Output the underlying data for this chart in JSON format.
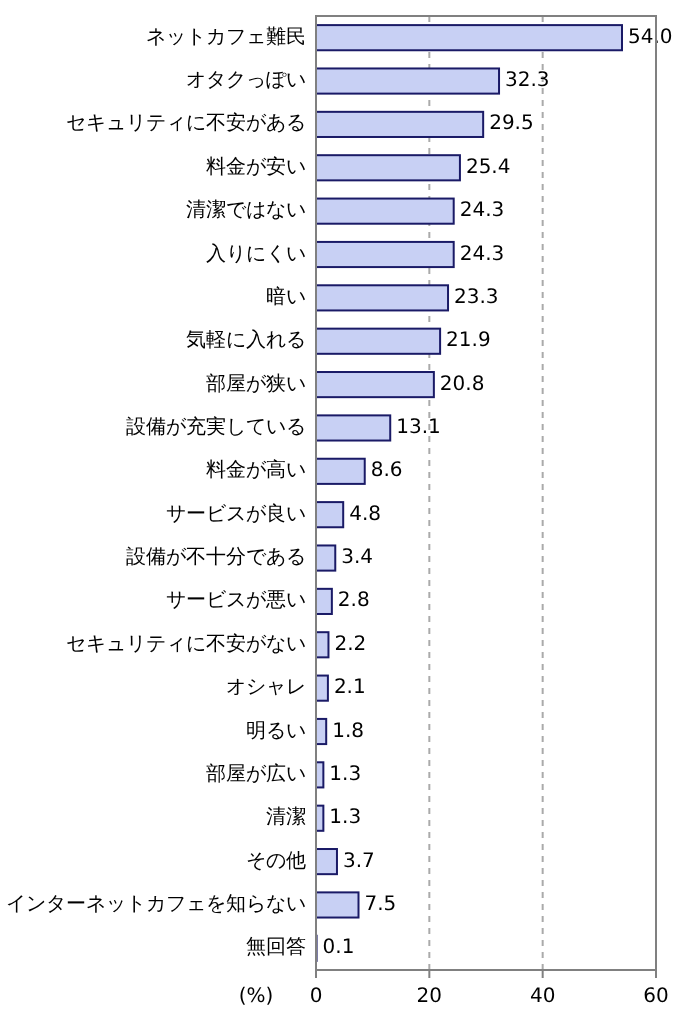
{
  "chart_data": {
    "type": "bar",
    "orientation": "horizontal",
    "xlabel": "(%)",
    "categories": [
      "ネットカフェ難民",
      "オタクっぽい",
      "セキュリティに不安がある",
      "料金が安い",
      "清潔ではない",
      "入りにくい",
      "暗い",
      "気軽に入れる",
      "部屋が狭い",
      "設備が充実している",
      "料金が高い",
      "サービスが良い",
      "設備が不十分である",
      "サービスが悪い",
      "セキュリティに不安がない",
      "オシャレ",
      "明るい",
      "部屋が広い",
      "清潔",
      "その他",
      "インターネットカフェを知らない",
      "無回答"
    ],
    "values": [
      54.0,
      32.3,
      29.5,
      25.4,
      24.3,
      24.3,
      23.3,
      21.9,
      20.8,
      13.1,
      8.6,
      4.8,
      3.4,
      2.8,
      2.2,
      2.1,
      1.8,
      1.3,
      1.3,
      3.7,
      7.5,
      0.1
    ],
    "value_labels": [
      "54.0",
      "32.3",
      "29.5",
      "25.4",
      "24.3",
      "24.3",
      "23.3",
      "21.9",
      "20.8",
      "13.1",
      "8.6",
      "4.8",
      "3.4",
      "2.8",
      "2.2",
      "2.1",
      "1.8",
      "1.3",
      "1.3",
      "3.7",
      "7.5",
      "0.1"
    ],
    "color": "#c8d0f4",
    "xlim": [
      0,
      60
    ],
    "xticks": [
      0,
      20,
      40,
      60
    ],
    "grid": "x"
  }
}
